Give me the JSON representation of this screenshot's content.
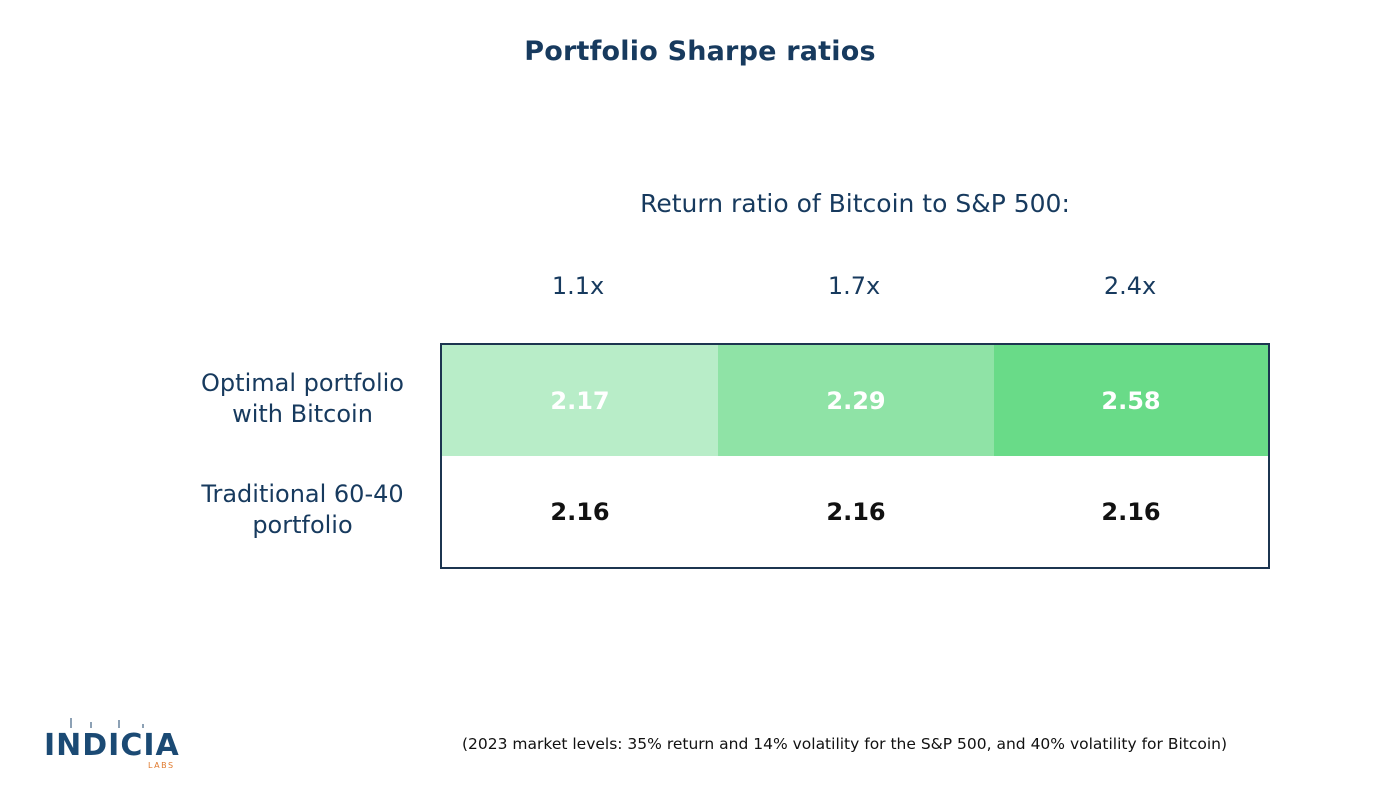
{
  "title": "Portfolio Sharpe ratios",
  "chart_data": {
    "type": "table",
    "title": "Portfolio Sharpe ratios",
    "column_header": "Return ratio of Bitcoin to S&P 500:",
    "columns": [
      "1.1x",
      "1.7x",
      "2.4x"
    ],
    "rows": [
      {
        "label_lines": [
          "Optimal portfolio",
          "with Bitcoin"
        ],
        "values": [
          "2.17",
          "2.29",
          "2.58"
        ],
        "colors": [
          "#b8edc8",
          "#8fe3a6",
          "#69db88"
        ]
      },
      {
        "label_lines": [
          "Traditional 60-40",
          "portfolio"
        ],
        "values": [
          "2.16",
          "2.16",
          "2.16"
        ]
      }
    ]
  },
  "footnote": "(2023 market levels: 35% return and 14% volatility for the S&P 500, and 40% volatility for Bitcoin)",
  "logo": {
    "name": "INDICIA",
    "sub": "LABS",
    "brand_color": "#1b4a74",
    "accent_color": "#e07a2e"
  },
  "colors": {
    "heading": "#173a5e",
    "border": "#1c3550"
  }
}
